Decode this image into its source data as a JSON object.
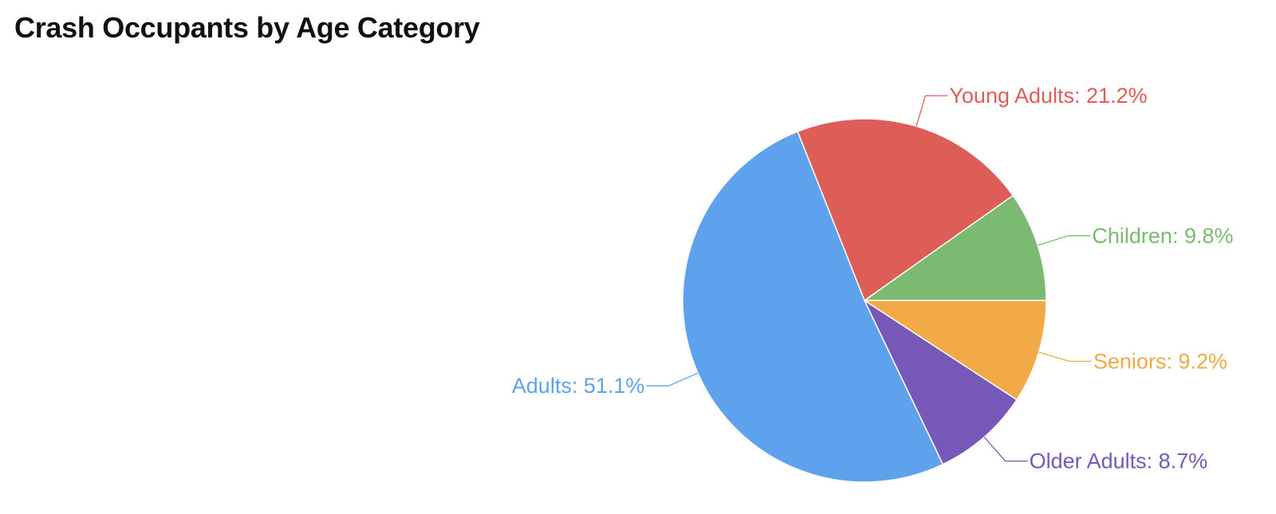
{
  "chart_data": {
    "type": "pie",
    "title": "Crash Occupants by Age Category",
    "start_angle_deg": 0,
    "direction": "counterclockwise",
    "slices": [
      {
        "label": "Children: 9.8%",
        "name": "Children",
        "value": 9.8,
        "color": "#7cb971"
      },
      {
        "label": "Young Adults: 21.2%",
        "name": "Young Adults",
        "value": 21.2,
        "color": "#dd5e57"
      },
      {
        "label": "Adults: 51.1%",
        "name": "Adults",
        "value": 51.1,
        "color": "#5ea2ee"
      },
      {
        "label": "Older Adults: 8.7%",
        "name": "Older Adults",
        "value": 8.7,
        "color": "#7658b9"
      },
      {
        "label": "Seniors: 9.2%",
        "name": "Seniors",
        "value": 9.2,
        "color": "#f1aa46"
      }
    ]
  }
}
